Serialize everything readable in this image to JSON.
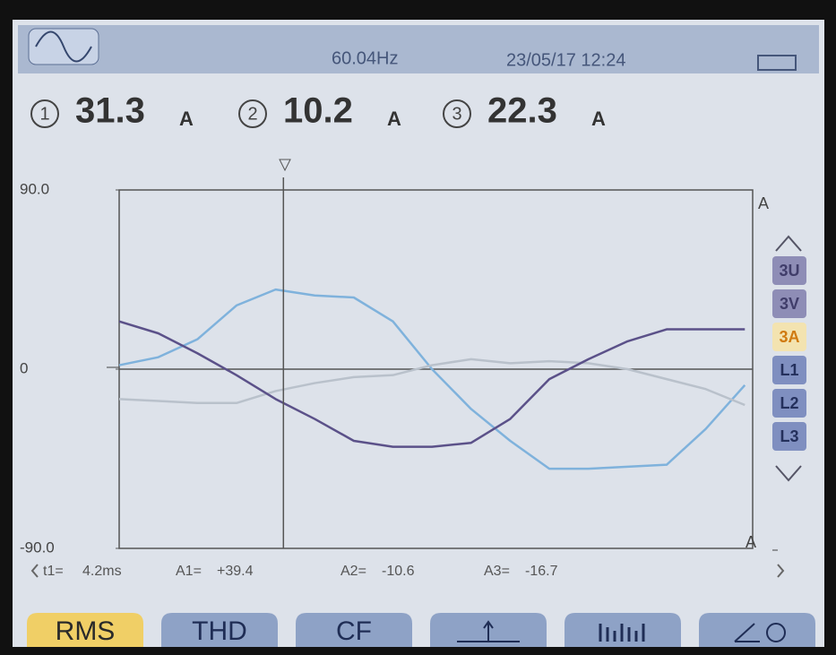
{
  "header": {
    "frequency": "60.04Hz",
    "datetime": "23/05/17 12:24"
  },
  "readings": [
    {
      "channel": "1",
      "value": "31.3",
      "unit": "A"
    },
    {
      "channel": "2",
      "value": "10.2",
      "unit": "A"
    },
    {
      "channel": "3",
      "value": "22.3",
      "unit": "A"
    }
  ],
  "chart_data": {
    "type": "line",
    "x": [
      0,
      1,
      2,
      3,
      4,
      5,
      6,
      7,
      8,
      9,
      10,
      11,
      12,
      13,
      14,
      15,
      16
    ],
    "xlim": [
      0,
      16.2
    ],
    "ylim": [
      -90,
      90
    ],
    "yticks": [
      {
        "value": 90,
        "label": "90.0"
      },
      0,
      {
        "value": -90,
        "label": "-90.0"
      }
    ],
    "y_unit": "A",
    "series": [
      {
        "name": "1",
        "color": "#7fb2dc",
        "values": [
          2,
          6,
          15,
          32,
          40,
          37,
          36,
          24,
          0,
          -20,
          -36,
          -50,
          -50,
          -49,
          -48,
          -30,
          -8
        ]
      },
      {
        "name": "2",
        "color": "#b9c1cb",
        "values": [
          -15,
          -16,
          -17,
          -17,
          -11,
          -7,
          -4,
          -3,
          2,
          5,
          3,
          4,
          3,
          0,
          -5,
          -10,
          -18
        ]
      },
      {
        "name": "3",
        "color": "#5b5189",
        "values": [
          24,
          18,
          8,
          -3,
          -15,
          -25,
          -36,
          -39,
          -39,
          -37,
          -25,
          -5,
          5,
          14,
          20,
          20,
          20
        ]
      }
    ],
    "cursor": {
      "value": 4.2,
      "label": "4.2ms"
    }
  },
  "cursor_readout": {
    "t_label": "t1=",
    "readouts": [
      {
        "label": "A1=",
        "value": "+39.4"
      },
      {
        "label": "A2=",
        "value": "-10.6"
      },
      {
        "label": "A3=",
        "value": "-16.7"
      }
    ]
  },
  "side_buttons": [
    "3U",
    "3V",
    "3A",
    "L1",
    "L2",
    "L3"
  ],
  "tabs": [
    "RMS",
    "THD",
    "CF"
  ]
}
